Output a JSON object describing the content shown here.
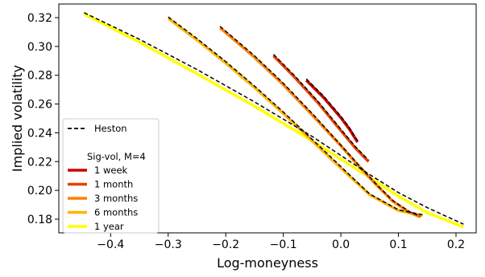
{
  "chart_data": {
    "type": "line",
    "xlabel": "Log-moneyness",
    "ylabel": "Implied volatility",
    "xlim": [
      -0.49,
      0.235
    ],
    "ylim": [
      0.1705,
      0.3295
    ],
    "xticks": [
      -0.4,
      -0.3,
      -0.2,
      -0.1,
      0.0,
      0.1,
      0.2
    ],
    "xtick_labels": [
      "−0.4",
      "−0.3",
      "−0.2",
      "−0.1",
      "0.0",
      "0.1",
      "0.2"
    ],
    "yticks": [
      0.18,
      0.2,
      0.22,
      0.24,
      0.26,
      0.28,
      0.3,
      0.32
    ],
    "ytick_labels": [
      "0.18",
      "0.20",
      "0.22",
      "0.24",
      "0.26",
      "0.28",
      "0.30",
      "0.32"
    ],
    "grid": false,
    "legend": {
      "placement": "lower-left",
      "heston_label": "Heston",
      "group_title": "Sig-vol, M=4"
    },
    "series": [
      {
        "name": "1 year",
        "color": "#ffff00",
        "points": [
          [
            -0.446,
            0.3225
          ],
          [
            -0.35,
            0.303
          ],
          [
            -0.25,
            0.281
          ],
          [
            -0.15,
            0.2585
          ],
          [
            -0.05,
            0.2345
          ],
          [
            0.05,
            0.209
          ],
          [
            0.1,
            0.196
          ],
          [
            0.15,
            0.1845
          ],
          [
            0.213,
            0.1745
          ]
        ]
      },
      {
        "name": "6 months",
        "color": "#ffb300",
        "points": [
          [
            -0.3,
            0.3195
          ],
          [
            -0.25,
            0.3045
          ],
          [
            -0.2,
            0.2885
          ],
          [
            -0.15,
            0.2715
          ],
          [
            -0.1,
            0.2535
          ],
          [
            -0.05,
            0.2345
          ],
          [
            0.0,
            0.2155
          ],
          [
            0.05,
            0.197
          ],
          [
            0.1,
            0.186
          ],
          [
            0.142,
            0.1825
          ]
        ]
      },
      {
        "name": "3 months",
        "color": "#ff7f00",
        "points": [
          [
            -0.21,
            0.313
          ],
          [
            -0.15,
            0.2925
          ],
          [
            -0.1,
            0.2735
          ],
          [
            -0.05,
            0.2525
          ],
          [
            0.0,
            0.231
          ],
          [
            0.03,
            0.2175
          ],
          [
            0.06,
            0.2045
          ],
          [
            0.09,
            0.1925
          ],
          [
            0.12,
            0.1845
          ],
          [
            0.138,
            0.1815
          ]
        ]
      },
      {
        "name": "1 month",
        "color": "#e64200",
        "points": [
          [
            -0.117,
            0.2935
          ],
          [
            -0.08,
            0.2785
          ],
          [
            -0.04,
            0.261
          ],
          [
            0.0,
            0.2415
          ],
          [
            0.025,
            0.2295
          ],
          [
            0.048,
            0.22
          ]
        ]
      },
      {
        "name": "1 week",
        "color": "#cc0000",
        "points": [
          [
            -0.06,
            0.2765
          ],
          [
            -0.03,
            0.2645
          ],
          [
            0.0,
            0.2505
          ],
          [
            0.015,
            0.2425
          ],
          [
            0.029,
            0.2335
          ]
        ]
      }
    ],
    "heston": {
      "name": "Heston",
      "color": "#000000",
      "curves": [
        [
          [
            -0.446,
            0.3235
          ],
          [
            -0.35,
            0.305
          ],
          [
            -0.25,
            0.284
          ],
          [
            -0.15,
            0.2615
          ],
          [
            -0.05,
            0.2375
          ],
          [
            0.05,
            0.211
          ],
          [
            0.1,
            0.1985
          ],
          [
            0.15,
            0.188
          ],
          [
            0.213,
            0.1765
          ]
        ],
        [
          [
            -0.3,
            0.3205
          ],
          [
            -0.25,
            0.3055
          ],
          [
            -0.2,
            0.2895
          ],
          [
            -0.15,
            0.2725
          ],
          [
            -0.1,
            0.2545
          ],
          [
            -0.05,
            0.2355
          ],
          [
            0.0,
            0.2165
          ],
          [
            0.05,
            0.1975
          ],
          [
            0.1,
            0.1865
          ],
          [
            0.142,
            0.183
          ]
        ],
        [
          [
            -0.21,
            0.314
          ],
          [
            -0.15,
            0.2935
          ],
          [
            -0.1,
            0.2745
          ],
          [
            -0.05,
            0.2535
          ],
          [
            0.0,
            0.2315
          ],
          [
            0.03,
            0.218
          ],
          [
            0.06,
            0.205
          ],
          [
            0.09,
            0.193
          ],
          [
            0.12,
            0.185
          ],
          [
            0.138,
            0.182
          ]
        ],
        [
          [
            -0.117,
            0.2945
          ],
          [
            -0.08,
            0.2795
          ],
          [
            -0.04,
            0.262
          ],
          [
            0.0,
            0.2425
          ],
          [
            0.025,
            0.2305
          ],
          [
            0.048,
            0.221
          ]
        ],
        [
          [
            -0.06,
            0.2775
          ],
          [
            -0.03,
            0.2655
          ],
          [
            0.0,
            0.2515
          ],
          [
            0.015,
            0.2435
          ],
          [
            0.029,
            0.2345
          ]
        ]
      ]
    }
  }
}
